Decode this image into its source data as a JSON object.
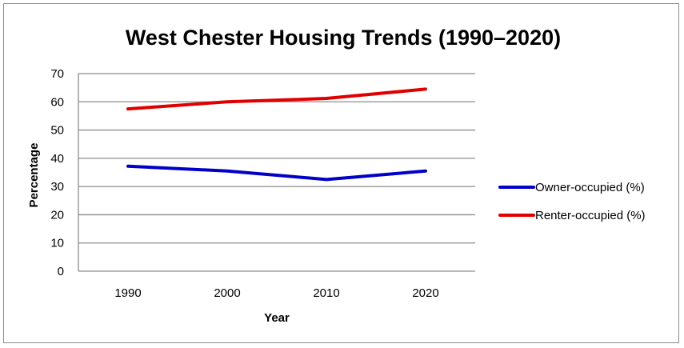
{
  "chart_data": {
    "type": "line",
    "title": "West Chester Housing Trends (1990–2020)",
    "xlabel": "Year",
    "ylabel": "Percentage",
    "categories": [
      "1990",
      "2000",
      "2010",
      "2020"
    ],
    "ylim": [
      0,
      70
    ],
    "yticks": [
      0,
      10,
      20,
      30,
      40,
      50,
      60,
      70
    ],
    "grid": true,
    "legend_position": "right",
    "series": [
      {
        "name": "Owner-occupied (%)",
        "color": "#0000c8",
        "values": [
          37.2,
          35.5,
          32.5,
          35.5
        ]
      },
      {
        "name": "Renter-occupied (%)",
        "color": "#e00000",
        "values": [
          57.5,
          60.0,
          61.2,
          64.5
        ]
      }
    ]
  }
}
